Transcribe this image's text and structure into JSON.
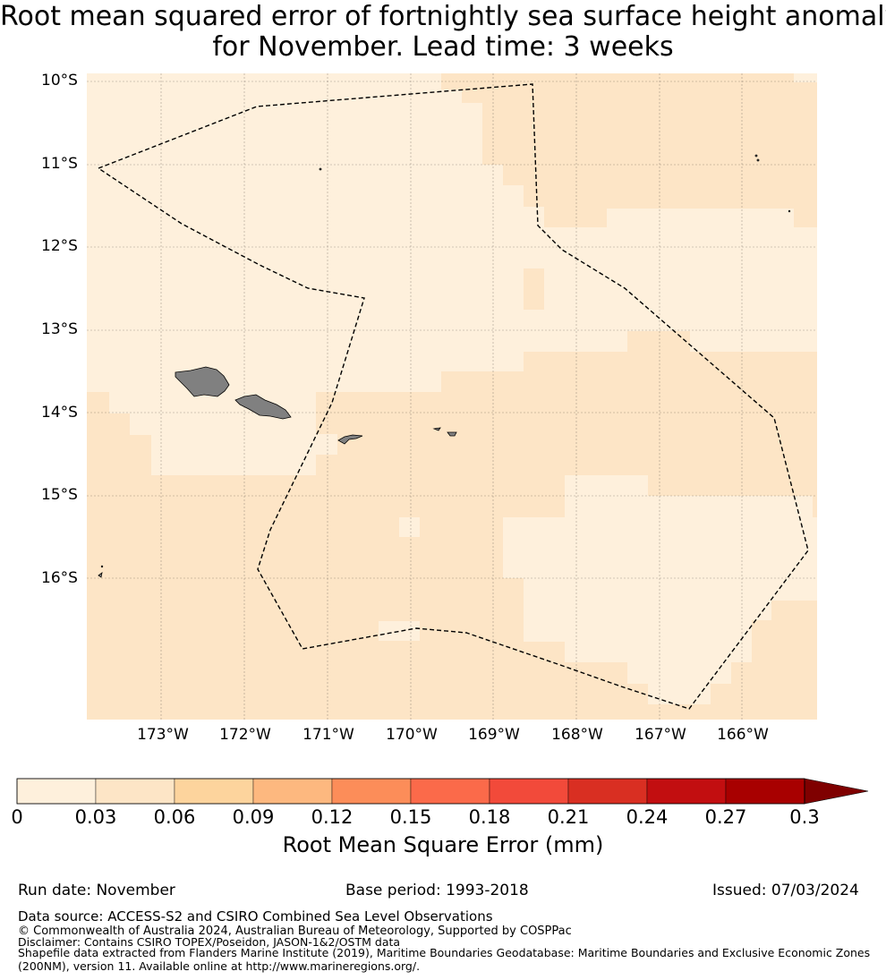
{
  "title": {
    "line1": "Root mean squared error of fortnightly sea surface height anomaly",
    "line2": "for November. Lead time: 3 weeks"
  },
  "map": {
    "lat_labels": [
      "10°S",
      "11°S",
      "12°S",
      "13°S",
      "14°S",
      "15°S",
      "16°S"
    ],
    "lon_labels": [
      "173°W",
      "172°W",
      "171°W",
      "170°W",
      "169°W",
      "168°W",
      "167°W",
      "166°W"
    ],
    "field_colors": {
      "low": "#fef0dc",
      "mid": "#fde5c6"
    },
    "land_color": "#808080",
    "eez_line_style": "dashed black"
  },
  "colorbar": {
    "title": "Root Mean Square Error (mm)",
    "ticks": [
      "0",
      "0.03",
      "0.06",
      "0.09",
      "0.12",
      "0.15",
      "0.18",
      "0.21",
      "0.24",
      "0.27",
      "0.3"
    ],
    "colors": [
      "#fef0dc",
      "#fde5c6",
      "#fdd49d",
      "#fdb87f",
      "#fc8d59",
      "#fb6a4a",
      "#f24a3a",
      "#d92f22",
      "#c20e10",
      "#a80000"
    ],
    "extend_color": "#7f0000"
  },
  "footer": {
    "run_date": "Run date: November",
    "base_period": "Base period: 1993-2018",
    "issued": "Issued: 07/03/2024",
    "data_source": "Data source: ACCESS-S2 and CSIRO Combined Sea Level Observations",
    "copyright": "© Commonwealth of Australia 2024, Australian Bureau of Meteorology, Supported by COSPPac",
    "disclaimer": "Disclaimer: Contains CSIRO TOPEX/Poseidon, JASON-1&2/OSTM data",
    "shapefile_1": "Shapefile data extracted from Flanders Marine Institute (2019), Maritime Boundaries Geodatabase: Maritime Boundaries and Exclusive Economic Zones",
    "shapefile_2": "(200NM), version 11. Available online at http://www.marineregions.org/."
  }
}
